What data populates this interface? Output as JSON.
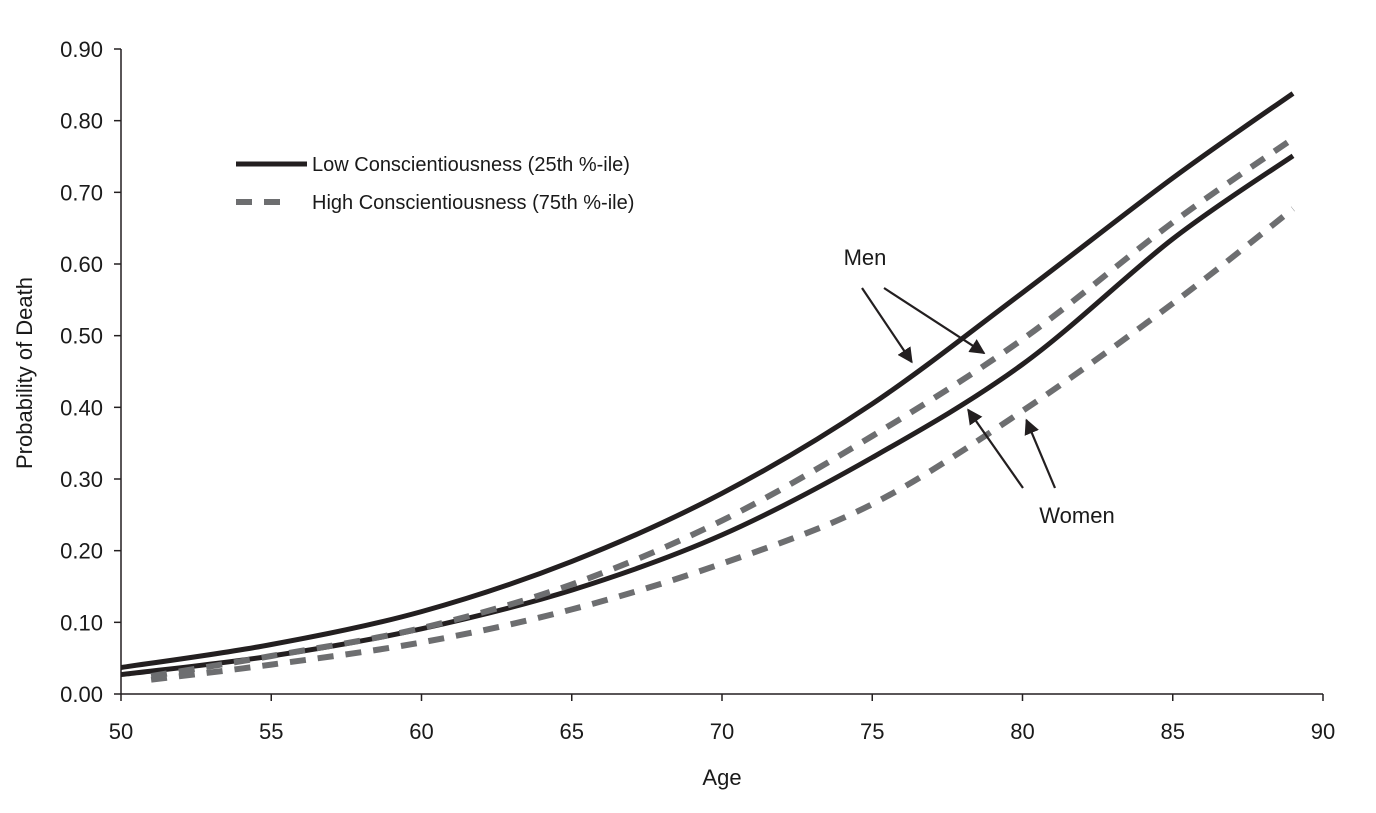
{
  "chart_data": {
    "type": "line",
    "xlabel": "Age",
    "ylabel": "Probability of Death",
    "xlim": [
      50,
      90
    ],
    "ylim": [
      0,
      0.9
    ],
    "x_ticks": [
      "50",
      "55",
      "60",
      "65",
      "70",
      "75",
      "80",
      "85",
      "90"
    ],
    "y_ticks": [
      "0.00",
      "0.10",
      "0.20",
      "0.30",
      "0.40",
      "0.50",
      "0.60",
      "0.70",
      "0.80",
      "0.90"
    ],
    "grid": false,
    "legend": {
      "placement": "top-left",
      "entries": [
        {
          "label": "Low Conscientiousness (25th %-ile)",
          "style": "solid"
        },
        {
          "label": "High Conscientiousness (75th %-ile)",
          "style": "dashed"
        }
      ]
    },
    "annotations": [
      {
        "text": "Men",
        "points_to": [
          "men-low",
          "men-high"
        ]
      },
      {
        "text": "Women",
        "points_to": [
          "women-low",
          "women-high"
        ]
      }
    ],
    "colors": {
      "low": "#231f20",
      "high": "#6d6e70"
    },
    "series": [
      {
        "id": "men-low",
        "style": "solid",
        "x": [
          50,
          55,
          60,
          65,
          70,
          75,
          80,
          85,
          89
        ],
        "values": [
          0.037,
          0.069,
          0.115,
          0.185,
          0.28,
          0.405,
          0.56,
          0.72,
          0.838
        ]
      },
      {
        "id": "women-low",
        "style": "solid",
        "x": [
          50,
          55,
          60,
          65,
          70,
          75,
          80,
          85,
          89
        ],
        "values": [
          0.027,
          0.053,
          0.091,
          0.145,
          0.222,
          0.33,
          0.46,
          0.635,
          0.751
        ]
      },
      {
        "id": "men-high",
        "style": "dashed",
        "x": [
          51,
          55,
          60,
          65,
          70,
          75,
          80,
          85,
          89
        ],
        "values": [
          0.025,
          0.053,
          0.092,
          0.153,
          0.242,
          0.36,
          0.495,
          0.658,
          0.775
        ]
      },
      {
        "id": "women-high",
        "style": "dashed",
        "x": [
          51,
          55,
          60,
          65,
          70,
          75,
          80,
          85,
          89
        ],
        "values": [
          0.02,
          0.041,
          0.072,
          0.118,
          0.182,
          0.265,
          0.395,
          0.545,
          0.677
        ]
      }
    ]
  }
}
